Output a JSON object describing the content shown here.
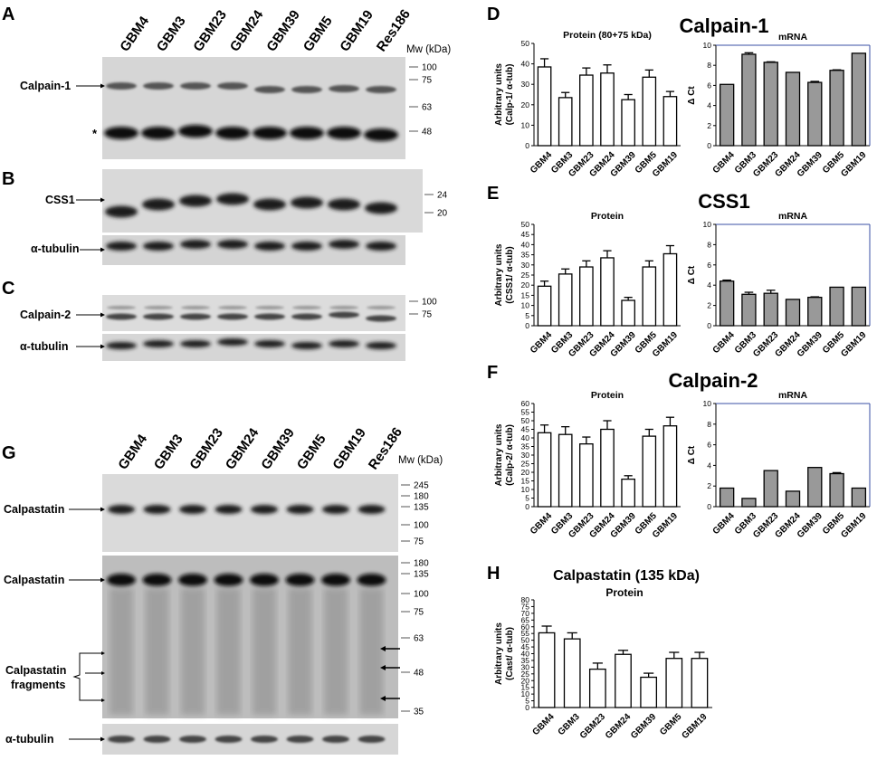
{
  "panel_letters": {
    "A": "A",
    "B": "B",
    "C": "C",
    "D": "D",
    "E": "E",
    "F": "F",
    "G": "G",
    "H": "H"
  },
  "blot_top": {
    "lanes": [
      "GBM4",
      "GBM3",
      "GBM23",
      "GBM24",
      "GBM39",
      "GBM5",
      "GBM19",
      "Res186"
    ],
    "mw_header": "Mw (kDa)",
    "labels": {
      "calpain1": "Calpain-1",
      "asterisk": "*",
      "css1": "CSS1",
      "tubulin_b": "α-tubulin",
      "calpain2": "Calpain-2",
      "tubulin_c": "α-tubulin"
    },
    "mw_a": [
      "100",
      "75",
      "63",
      "48"
    ],
    "mw_b": [
      "24",
      "20"
    ],
    "mw_c": [
      "100",
      "75"
    ]
  },
  "blot_g": {
    "lanes": [
      "GBM4",
      "GBM3",
      "GBM23",
      "GBM24",
      "GBM39",
      "GBM5",
      "GBM19",
      "Res186"
    ],
    "mw_header": "Mw (kDa)",
    "labels": {
      "calpastatin1": "Calpastatin",
      "calpastatin2": "Calpastatin",
      "fragments1": "Calpastatin",
      "fragments2": "fragments",
      "tubulin": "α-tubulin"
    },
    "mw_1": [
      "245",
      "180",
      "135",
      "100",
      "75"
    ],
    "mw_2": [
      "180",
      "135",
      "100",
      "75",
      "63",
      "48",
      "35"
    ]
  },
  "titles": {
    "D": "Calpain-1",
    "E": "CSS1",
    "F": "Calpain-2",
    "H1": "Calpastatin (135 kDa)",
    "H2": "Protein"
  },
  "chart_data": [
    {
      "id": "D-protein",
      "type": "bar",
      "title": "Protein (80+75 kDa)",
      "ylabel1": "Arbitrary units",
      "ylabel2": "(Calp-1/ α-tub)",
      "categories": [
        "GBM4",
        "GBM3",
        "GBM23",
        "GBM24",
        "GBM39",
        "GBM5",
        "GBM19"
      ],
      "values": [
        38.5,
        23.5,
        34.5,
        35.5,
        22.5,
        33.5,
        24
      ],
      "errors": [
        4,
        2.5,
        3.5,
        4,
        2.5,
        3.5,
        2.5
      ],
      "ylim": [
        0,
        50
      ],
      "yticks": [
        0,
        10,
        20,
        30,
        40,
        50
      ],
      "fill": "#ffffff"
    },
    {
      "id": "D-mrna",
      "type": "bar",
      "title": "mRNA",
      "ylabel1": "",
      "ylabel2": "Δ Ct",
      "categories": [
        "GBM4",
        "GBM3",
        "GBM23",
        "GBM24",
        "GBM39",
        "GBM5",
        "GBM19"
      ],
      "values": [
        6.1,
        9.1,
        8.3,
        7.3,
        6.3,
        7.5,
        9.2
      ],
      "errors": [
        0,
        0.15,
        0.05,
        0,
        0.1,
        0.05,
        0
      ],
      "ylim": [
        0,
        10
      ],
      "yticks": [
        0,
        2,
        4,
        6,
        8,
        10
      ],
      "fill": "#999999"
    },
    {
      "id": "E-protein",
      "type": "bar",
      "title": "Protein",
      "ylabel1": "Arbitrary units",
      "ylabel2": "(CSS1/ α-tub)",
      "categories": [
        "GBM4",
        "GBM3",
        "GBM23",
        "GBM24",
        "GBM39",
        "GBM5",
        "GBM19"
      ],
      "values": [
        19.5,
        25.5,
        29,
        33.5,
        12.5,
        29,
        35.5
      ],
      "errors": [
        2.5,
        2.5,
        3,
        3.5,
        1.5,
        3,
        4
      ],
      "ylim": [
        0,
        50
      ],
      "yticks": [
        0,
        5,
        10,
        15,
        20,
        25,
        30,
        35,
        40,
        45,
        50
      ],
      "fill": "#ffffff"
    },
    {
      "id": "E-mrna",
      "type": "bar",
      "title": "mRNA",
      "ylabel1": "",
      "ylabel2": "Δ Ct",
      "categories": [
        "GBM4",
        "GBM3",
        "GBM23",
        "GBM24",
        "GBM39",
        "GBM5",
        "GBM19"
      ],
      "values": [
        4.4,
        3.1,
        3.2,
        2.6,
        2.8,
        3.8,
        3.8
      ],
      "errors": [
        0.1,
        0.2,
        0.3,
        0,
        0.05,
        0,
        0
      ],
      "ylim": [
        0,
        10
      ],
      "yticks": [
        0,
        2,
        4,
        6,
        8,
        10
      ],
      "fill": "#999999"
    },
    {
      "id": "F-protein",
      "type": "bar",
      "title": "Protein",
      "ylabel1": "Arbitrary units",
      "ylabel2": "(Calp-2/ α-tub)",
      "categories": [
        "GBM4",
        "GBM3",
        "GBM23",
        "GBM24",
        "GBM39",
        "GBM5",
        "GBM19"
      ],
      "values": [
        43,
        42,
        36.5,
        45,
        16,
        41,
        47
      ],
      "errors": [
        4.5,
        4.5,
        4,
        5,
        2,
        4,
        5
      ],
      "ylim": [
        0,
        60
      ],
      "yticks": [
        0,
        5,
        10,
        15,
        20,
        25,
        30,
        35,
        40,
        45,
        50,
        55,
        60
      ],
      "fill": "#ffffff"
    },
    {
      "id": "F-mrna",
      "type": "bar",
      "title": "mRNA",
      "ylabel1": "",
      "ylabel2": "Δ Ct",
      "categories": [
        "GBM4",
        "GBM3",
        "GBM23",
        "GBM24",
        "GBM39",
        "GBM5",
        "GBM19"
      ],
      "values": [
        1.8,
        0.8,
        3.5,
        1.5,
        3.8,
        3.2,
        1.8
      ],
      "errors": [
        0,
        0,
        0,
        0,
        0,
        0.1,
        0
      ],
      "ylim": [
        0,
        10
      ],
      "yticks": [
        0,
        2,
        4,
        6,
        8,
        10
      ],
      "fill": "#999999"
    },
    {
      "id": "H-protein",
      "type": "bar",
      "title": "",
      "ylabel1": "Arbitrary units",
      "ylabel2": "(Cast/ α-tub)",
      "categories": [
        "GBM4",
        "GBM3",
        "GBM23",
        "GBM24",
        "GBM39",
        "GBM5",
        "GBM19"
      ],
      "values": [
        55.5,
        51,
        28.5,
        39.5,
        22.5,
        36.5,
        36.5
      ],
      "errors": [
        5,
        4.5,
        4.5,
        3,
        3,
        4.5,
        4.5
      ],
      "ylim": [
        0,
        80
      ],
      "yticks": [
        0,
        5,
        10,
        15,
        20,
        25,
        30,
        35,
        40,
        45,
        50,
        55,
        60,
        65,
        70,
        75,
        80
      ],
      "fill": "#ffffff"
    }
  ]
}
